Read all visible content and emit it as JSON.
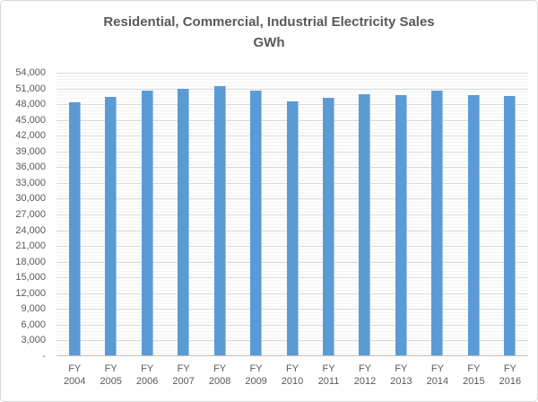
{
  "chart_data": {
    "type": "bar",
    "title": "Residential, Commercial, Industrial Electricity Sales",
    "subtitle": "GWh",
    "categories": [
      "FY 2004",
      "FY 2005",
      "FY 2006",
      "FY 2007",
      "FY 2008",
      "FY 2009",
      "FY 2010",
      "FY 2011",
      "FY 2012",
      "FY 2013",
      "FY 2014",
      "FY 2015",
      "FY 2016"
    ],
    "values": [
      48400,
      49400,
      50600,
      50900,
      51400,
      50500,
      48500,
      49200,
      49900,
      49700,
      50600,
      49800,
      49500
    ],
    "xlabel": "",
    "ylabel": "",
    "ylim": [
      0,
      54000
    ],
    "y_major_unit": 3000,
    "y_minor_unit": 600,
    "y_tick_labels": [
      "-",
      "3,000",
      "6,000",
      "9,000",
      "12,000",
      "15,000",
      "18,000",
      "21,000",
      "24,000",
      "27,000",
      "30,000",
      "33,000",
      "36,000",
      "39,000",
      "42,000",
      "45,000",
      "48,000",
      "51,000",
      "54,000"
    ],
    "legend": "none",
    "grid": "horizontal-major-and-minor",
    "bar_color": "#5b9bd5",
    "bar_highlight_color": "#9cc3e5",
    "major_gridline_color": "#d9d9d9",
    "minor_gridline_color": "#f2f2f2",
    "axis_line_color": "#bfbfbf",
    "text_color": "#595959",
    "background_color": "#ffffff",
    "border_color": "#d8d6d6"
  }
}
